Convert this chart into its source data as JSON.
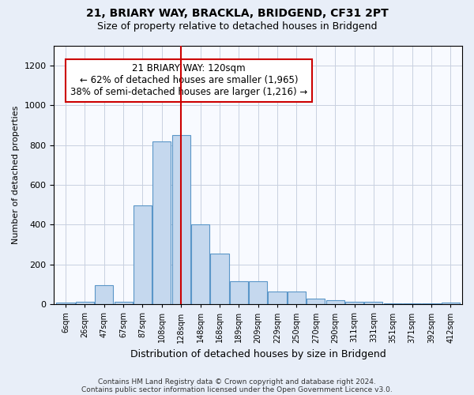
{
  "title1": "21, BRIARY WAY, BRACKLA, BRIDGEND, CF31 2PT",
  "title2": "Size of property relative to detached houses in Bridgend",
  "xlabel": "Distribution of detached houses by size in Bridgend",
  "ylabel": "Number of detached properties",
  "categories": [
    "6sqm",
    "26sqm",
    "47sqm",
    "67sqm",
    "87sqm",
    "108sqm",
    "128sqm",
    "148sqm",
    "168sqm",
    "189sqm",
    "209sqm",
    "229sqm",
    "250sqm",
    "270sqm",
    "290sqm",
    "311sqm",
    "331sqm",
    "351sqm",
    "371sqm",
    "392sqm",
    "412sqm"
  ],
  "values": [
    8,
    12,
    95,
    12,
    495,
    820,
    850,
    400,
    253,
    118,
    118,
    65,
    65,
    28,
    20,
    14,
    14,
    5,
    5,
    5,
    8
  ],
  "bar_color": "#c5d8ee",
  "bar_edge_color": "#5a96c8",
  "vline_x": 6.0,
  "vline_color": "#cc0000",
  "annotation_text": "21 BRIARY WAY: 120sqm\n← 62% of detached houses are smaller (1,965)\n38% of semi-detached houses are larger (1,216) →",
  "annotation_box_color": "#ffffff",
  "annotation_box_edge": "#cc0000",
  "ylim": [
    0,
    1300
  ],
  "yticks": [
    0,
    200,
    400,
    600,
    800,
    1000,
    1200
  ],
  "footer_line1": "Contains HM Land Registry data © Crown copyright and database right 2024.",
  "footer_line2": "Contains public sector information licensed under the Open Government Licence v3.0.",
  "bg_color": "#e8eef8",
  "axes_bg_color": "#f8faff",
  "grid_color": "#c8d0e0"
}
